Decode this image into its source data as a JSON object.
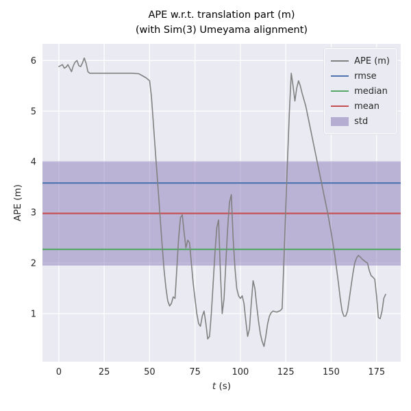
{
  "title": {
    "line1": "APE w.r.t. translation part (m)",
    "line2": "(with Sim(3) Umeyama alignment)"
  },
  "axes": {
    "xlabel_var": "t",
    "xlabel_unit": " (s)",
    "ylabel": "APE (m)",
    "xlim": [
      -9,
      188.3
    ],
    "ylim": [
      0.05,
      6.33
    ],
    "xticks": [
      0,
      25,
      50,
      75,
      100,
      125,
      150,
      175
    ],
    "yticks": [
      1,
      2,
      3,
      4,
      5,
      6
    ],
    "bg_color": "#eaeaf2",
    "grid_color": "#ffffff",
    "tick_color": "#262626"
  },
  "chart_data": {
    "type": "line",
    "title": "APE w.r.t. translation part (m) (with Sim(3) Umeyama alignment)",
    "xlabel": "t (s)",
    "ylabel": "APE (m)",
    "xlim": [
      -9,
      188.3
    ],
    "ylim": [
      0.05,
      6.33
    ],
    "grid": true,
    "legend_position": "upper right",
    "series": [
      {
        "name": "APE (m)",
        "color": "#808080",
        "points": [
          [
            0,
            5.88
          ],
          [
            1,
            5.9
          ],
          [
            2,
            5.92
          ],
          [
            3,
            5.85
          ],
          [
            4,
            5.87
          ],
          [
            5,
            5.92
          ],
          [
            6,
            5.85
          ],
          [
            7,
            5.78
          ],
          [
            8,
            5.9
          ],
          [
            9,
            5.97
          ],
          [
            10,
            6.0
          ],
          [
            11,
            5.9
          ],
          [
            12,
            5.88
          ],
          [
            13,
            5.95
          ],
          [
            14,
            6.05
          ],
          [
            15,
            5.95
          ],
          [
            16,
            5.78
          ],
          [
            17,
            5.75
          ],
          [
            20,
            5.75
          ],
          [
            25,
            5.75
          ],
          [
            30,
            5.75
          ],
          [
            35,
            5.75
          ],
          [
            40,
            5.75
          ],
          [
            44,
            5.74
          ],
          [
            46,
            5.7
          ],
          [
            48,
            5.66
          ],
          [
            50,
            5.6
          ],
          [
            51,
            5.3
          ],
          [
            52,
            4.8
          ],
          [
            53,
            4.3
          ],
          [
            54,
            3.8
          ],
          [
            55,
            3.3
          ],
          [
            56,
            2.8
          ],
          [
            57,
            2.3
          ],
          [
            58,
            1.85
          ],
          [
            59,
            1.5
          ],
          [
            60,
            1.25
          ],
          [
            61,
            1.15
          ],
          [
            62,
            1.2
          ],
          [
            63,
            1.33
          ],
          [
            64,
            1.3
          ],
          [
            65,
            1.9
          ],
          [
            66,
            2.5
          ],
          [
            67,
            2.9
          ],
          [
            68,
            2.95
          ],
          [
            69,
            2.6
          ],
          [
            70,
            2.3
          ],
          [
            71,
            2.45
          ],
          [
            72,
            2.4
          ],
          [
            74,
            1.6
          ],
          [
            76,
            1.0
          ],
          [
            77,
            0.8
          ],
          [
            78,
            0.75
          ],
          [
            79,
            0.95
          ],
          [
            80,
            1.05
          ],
          [
            81,
            0.8
          ],
          [
            82,
            0.5
          ],
          [
            83,
            0.55
          ],
          [
            84,
            1.0
          ],
          [
            85,
            1.6
          ],
          [
            86,
            2.2
          ],
          [
            87,
            2.7
          ],
          [
            88,
            2.85
          ],
          [
            89,
            1.8
          ],
          [
            90,
            1.0
          ],
          [
            91,
            1.3
          ],
          [
            92,
            2.0
          ],
          [
            93,
            2.7
          ],
          [
            94,
            3.2
          ],
          [
            95,
            3.35
          ],
          [
            96,
            2.5
          ],
          [
            97,
            1.9
          ],
          [
            98,
            1.5
          ],
          [
            99,
            1.35
          ],
          [
            100,
            1.3
          ],
          [
            101,
            1.35
          ],
          [
            102,
            1.2
          ],
          [
            103,
            0.85
          ],
          [
            104,
            0.55
          ],
          [
            105,
            0.7
          ],
          [
            106,
            1.2
          ],
          [
            107,
            1.65
          ],
          [
            108,
            1.5
          ],
          [
            109,
            1.15
          ],
          [
            110,
            0.85
          ],
          [
            111,
            0.6
          ],
          [
            112,
            0.45
          ],
          [
            113,
            0.35
          ],
          [
            114,
            0.55
          ],
          [
            115,
            0.8
          ],
          [
            116,
            0.95
          ],
          [
            117,
            1.02
          ],
          [
            118,
            1.05
          ],
          [
            120,
            1.03
          ],
          [
            122,
            1.06
          ],
          [
            123,
            1.1
          ],
          [
            124,
            2.1
          ],
          [
            125,
            3.1
          ],
          [
            126,
            4.1
          ],
          [
            127,
            5.0
          ],
          [
            128,
            5.75
          ],
          [
            129,
            5.5
          ],
          [
            130,
            5.2
          ],
          [
            131,
            5.45
          ],
          [
            132,
            5.6
          ],
          [
            133,
            5.5
          ],
          [
            134,
            5.35
          ],
          [
            136,
            5.1
          ],
          [
            138,
            4.75
          ],
          [
            140,
            4.4
          ],
          [
            142,
            4.05
          ],
          [
            144,
            3.7
          ],
          [
            146,
            3.35
          ],
          [
            148,
            3.0
          ],
          [
            150,
            2.6
          ],
          [
            152,
            2.15
          ],
          [
            154,
            1.6
          ],
          [
            155,
            1.3
          ],
          [
            156,
            1.05
          ],
          [
            157,
            0.95
          ],
          [
            158,
            0.95
          ],
          [
            159,
            1.05
          ],
          [
            160,
            1.3
          ],
          [
            161,
            1.55
          ],
          [
            162,
            1.8
          ],
          [
            163,
            2.0
          ],
          [
            164,
            2.1
          ],
          [
            165,
            2.15
          ],
          [
            166,
            2.12
          ],
          [
            167,
            2.08
          ],
          [
            168,
            2.05
          ],
          [
            169,
            2.02
          ],
          [
            170,
            2.0
          ],
          [
            171,
            1.85
          ],
          [
            172,
            1.75
          ],
          [
            173,
            1.72
          ],
          [
            174,
            1.68
          ],
          [
            175,
            1.35
          ],
          [
            176,
            0.92
          ],
          [
            177,
            0.9
          ],
          [
            178,
            1.05
          ],
          [
            179,
            1.3
          ],
          [
            180,
            1.38
          ]
        ]
      }
    ],
    "stats": {
      "rmse": {
        "value": 3.58,
        "color": "#4c72b0"
      },
      "mean": {
        "value": 2.98,
        "color": "#c44e52"
      },
      "median": {
        "value": 2.27,
        "color": "#55a868"
      },
      "std_band": {
        "low": 1.95,
        "high": 4.01,
        "color": "#8172b2",
        "alpha": 0.45
      }
    },
    "legend": [
      {
        "key": "ape",
        "label": "APE (m)",
        "type": "line",
        "color": "#808080"
      },
      {
        "key": "rmse",
        "label": "rmse",
        "type": "line",
        "color": "#4c72b0"
      },
      {
        "key": "median",
        "label": "median",
        "type": "line",
        "color": "#55a868"
      },
      {
        "key": "mean",
        "label": "mean",
        "type": "line",
        "color": "#c44e52"
      },
      {
        "key": "std",
        "label": "std",
        "type": "patch",
        "color": "#8172b2"
      }
    ]
  }
}
